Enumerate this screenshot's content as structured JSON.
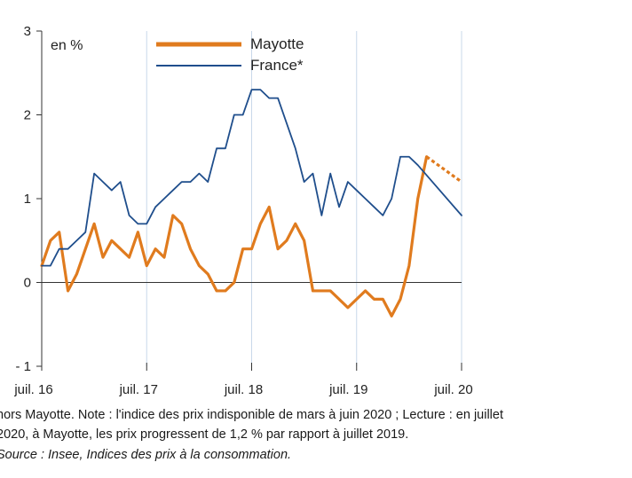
{
  "chart_data": {
    "type": "line",
    "unit_label": "en %",
    "xlabel": "",
    "ylabel": "",
    "ylim": [
      -1,
      3
    ],
    "yticks": [
      -1,
      0,
      1,
      2,
      3
    ],
    "ytick_labels": [
      "- 1",
      "0",
      "1",
      "2",
      "3"
    ],
    "xtick_labels": [
      "juil. 16",
      "juil. 17",
      "juil. 18",
      "juil. 19",
      "juil. 20"
    ],
    "x_start": "2016-07",
    "x_end": "2020-07",
    "grid": "vertical",
    "legend_position": "top",
    "series": [
      {
        "name": "Mayotte",
        "color": "#e07b1e",
        "dashed_from": "2020-03",
        "x": [
          "2016-07",
          "2016-08",
          "2016-09",
          "2016-10",
          "2016-11",
          "2016-12",
          "2017-01",
          "2017-02",
          "2017-03",
          "2017-04",
          "2017-05",
          "2017-06",
          "2017-07",
          "2017-08",
          "2017-09",
          "2017-10",
          "2017-11",
          "2017-12",
          "2018-01",
          "2018-02",
          "2018-03",
          "2018-04",
          "2018-05",
          "2018-06",
          "2018-07",
          "2018-08",
          "2018-09",
          "2018-10",
          "2018-11",
          "2018-12",
          "2019-01",
          "2019-02",
          "2019-03",
          "2019-04",
          "2019-05",
          "2019-06",
          "2019-07",
          "2019-08",
          "2019-09",
          "2019-10",
          "2019-11",
          "2019-12",
          "2020-01",
          "2020-02",
          "2020-03",
          "2020-07"
        ],
        "values": [
          0.2,
          0.5,
          0.6,
          -0.1,
          0.1,
          0.4,
          0.7,
          0.3,
          0.5,
          0.4,
          0.3,
          0.6,
          0.2,
          0.4,
          0.3,
          0.8,
          0.7,
          0.4,
          0.2,
          0.1,
          -0.1,
          -0.1,
          0.0,
          0.4,
          0.4,
          0.7,
          0.9,
          0.4,
          0.5,
          0.7,
          0.5,
          -0.1,
          -0.1,
          -0.1,
          -0.2,
          -0.3,
          -0.2,
          -0.1,
          -0.2,
          -0.2,
          -0.4,
          -0.2,
          0.2,
          1.0,
          1.5,
          1.2
        ]
      },
      {
        "name": "France*",
        "color": "#1f4e8c",
        "x": [
          "2016-07",
          "2016-08",
          "2016-09",
          "2016-10",
          "2016-11",
          "2016-12",
          "2017-01",
          "2017-02",
          "2017-03",
          "2017-04",
          "2017-05",
          "2017-06",
          "2017-07",
          "2017-08",
          "2017-09",
          "2017-10",
          "2017-11",
          "2017-12",
          "2018-01",
          "2018-02",
          "2018-03",
          "2018-04",
          "2018-05",
          "2018-06",
          "2018-07",
          "2018-08",
          "2018-09",
          "2018-10",
          "2018-11",
          "2018-12",
          "2019-01",
          "2019-02",
          "2019-03",
          "2019-04",
          "2019-05",
          "2019-06",
          "2019-07",
          "2019-08",
          "2019-09",
          "2019-10",
          "2019-11",
          "2019-12",
          "2020-01",
          "2020-02",
          "2020-07"
        ],
        "values": [
          0.2,
          0.2,
          0.4,
          0.4,
          0.5,
          0.6,
          1.3,
          1.2,
          1.1,
          1.2,
          0.8,
          0.7,
          0.7,
          0.9,
          1.0,
          1.1,
          1.2,
          1.2,
          1.3,
          1.2,
          1.6,
          1.6,
          2.0,
          2.0,
          2.3,
          2.3,
          2.2,
          2.2,
          1.9,
          1.6,
          1.2,
          1.3,
          0.8,
          1.3,
          0.9,
          1.2,
          1.1,
          1.0,
          0.9,
          0.8,
          1.0,
          1.5,
          1.5,
          1.4,
          0.8
        ]
      }
    ]
  },
  "footnotes": {
    "line1": "hors Mayotte. Note : l'indice des prix indisponible de mars à juin 2020 ; Lecture : en juillet",
    "line2": "2020, à Mayotte, les prix progressent de 1,2 % par rapport à juillet 2019.",
    "line3": "Source : Insee, Indices des prix à la consommation."
  }
}
